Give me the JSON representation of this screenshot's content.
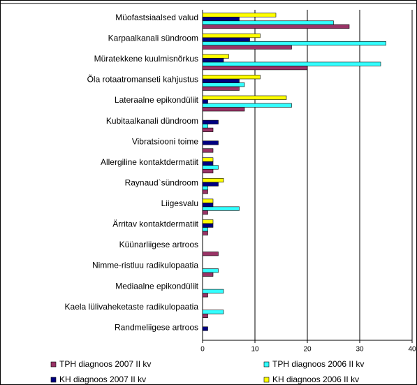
{
  "chart_data": {
    "type": "bar",
    "orientation": "horizontal",
    "categories": [
      "Müofastsiaalsed valud",
      "Karpaalkanali sündroom",
      "Müratekkene kuulmisnõrkus",
      "Õla rotaatromanseti kahjustus",
      "Lateraalne epikondüliit",
      "Kubitaalkanali dündroom",
      "Vibratsiooni toime",
      "Allergiline kontaktdermatiit",
      "Raynaud`sündroom",
      "Liigesvalu",
      "Ärritav kontaktdermatiit",
      "Küünarliigese artroos",
      "Nimme-ristluu radikulopaatia",
      "Mediaalne epikondüliit",
      "Kaela lülivaheketaste radikulopaatia",
      "Randmeliigese artroos"
    ],
    "series": [
      {
        "name": "TPH diagnoos 2007 II kv",
        "color": "#993366",
        "values": [
          28,
          17,
          20,
          7,
          8,
          2,
          2,
          2,
          1,
          1,
          1,
          3,
          2,
          1,
          1,
          0
        ]
      },
      {
        "name": "TPH diagnoos 2006 II kv",
        "color": "#33ffff",
        "values": [
          25,
          35,
          34,
          8,
          17,
          1,
          0,
          3,
          1,
          7,
          1,
          0,
          3,
          4,
          4,
          0
        ]
      },
      {
        "name": "KH diagnoos 2007 II kv",
        "color": "#000080",
        "values": [
          7,
          9,
          4,
          7,
          1,
          3,
          3,
          2,
          3,
          2,
          2,
          0,
          0,
          0,
          0,
          1
        ]
      },
      {
        "name": "KH diagnoos 2006 II kv",
        "color": "#ffff00",
        "values": [
          14,
          11,
          5,
          11,
          16,
          0,
          0,
          2,
          4,
          2,
          2,
          0,
          0,
          0,
          0,
          0
        ]
      }
    ],
    "xlim": [
      0,
      40
    ],
    "xticks": [
      0,
      10,
      20,
      30,
      40
    ],
    "grid": true,
    "legend": "bottom"
  }
}
